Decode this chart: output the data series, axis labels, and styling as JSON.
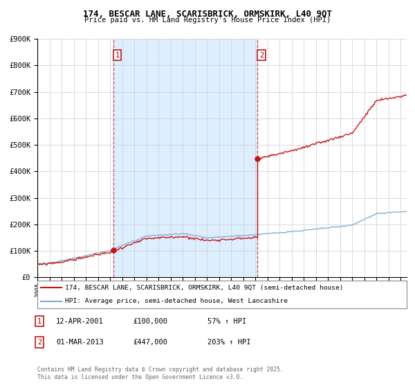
{
  "title_line1": "174, BESCAR LANE, SCARISBRICK, ORMSKIRK, L40 9QT",
  "title_line2": "Price paid vs. HM Land Registry's House Price Index (HPI)",
  "legend_line1": "174, BESCAR LANE, SCARISBRICK, ORMSKIRK, L40 9QT (semi-detached house)",
  "legend_line2": "HPI: Average price, semi-detached house, West Lancashire",
  "footer": "Contains HM Land Registry data © Crown copyright and database right 2025.\nThis data is licensed under the Open Government Licence v3.0.",
  "annotation1_date": "12-APR-2001",
  "annotation1_price": "£100,000",
  "annotation1_hpi": "57% ↑ HPI",
  "annotation2_date": "01-MAR-2013",
  "annotation2_price": "£447,000",
  "annotation2_hpi": "203% ↑ HPI",
  "sale1_x": 2001.28,
  "sale1_y": 100000,
  "sale2_x": 2013.17,
  "sale2_y": 447000,
  "hpi_line_color": "#7aaad0",
  "property_line_color": "#cc1111",
  "background_color": "#ffffff",
  "shaded_region_color": "#ddeeff",
  "grid_color": "#cccccc",
  "xlim_min": 1995,
  "xlim_max": 2025.5,
  "ylim_min": 0,
  "ylim_max": 900000,
  "yticks": [
    0,
    100000,
    200000,
    300000,
    400000,
    500000,
    600000,
    700000,
    800000,
    900000
  ]
}
